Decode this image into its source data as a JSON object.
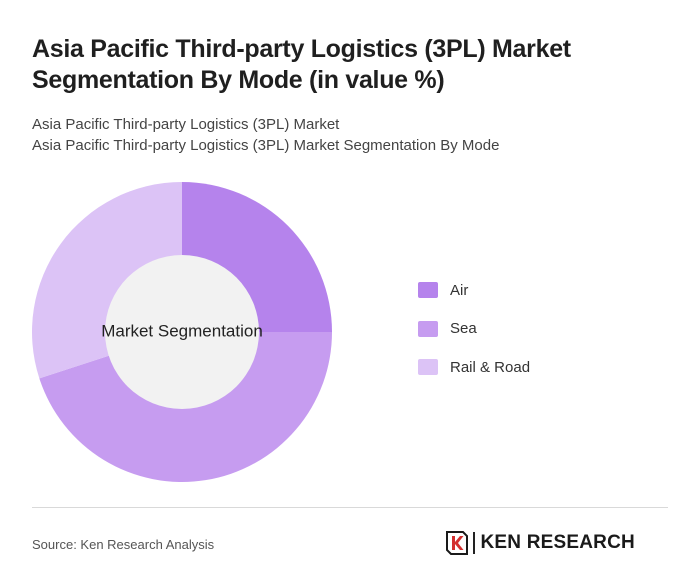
{
  "header": {
    "title": "Asia Pacific Third-party Logistics (3PL) Market Segmentation By Mode (in value %)",
    "subtitle_line1": "Asia Pacific Third-party Logistics (3PL) Market",
    "subtitle_line2": "Asia Pacific Third-party Logistics (3PL) Market Segmentation By Mode"
  },
  "chart_data": {
    "type": "pie",
    "style": "donut",
    "center_label": "Market Segmentation",
    "categories": [
      "Air",
      "Sea",
      "Rail & Road"
    ],
    "values": [
      25,
      45,
      30
    ],
    "colors": [
      "#b583ec",
      "#c69cf0",
      "#dcc3f6"
    ],
    "legend_position": "right"
  },
  "footer": {
    "source": "Source: Ken Research Analysis",
    "logo_text": "KEN RESEARCH"
  }
}
